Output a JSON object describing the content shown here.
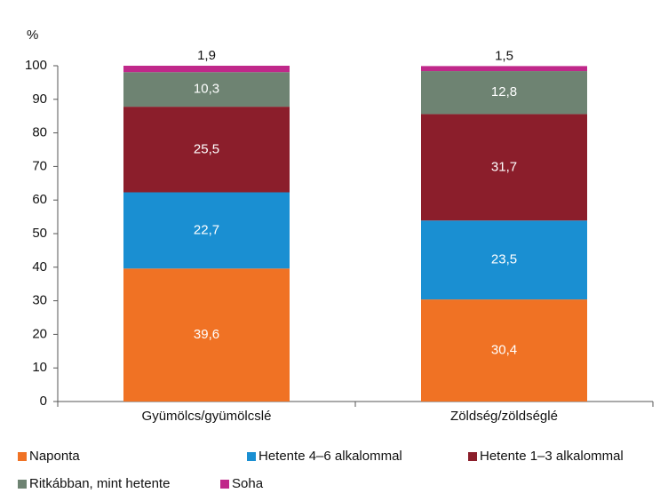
{
  "chart_data": {
    "type": "stacked_bar",
    "ylabel": "%",
    "categories": [
      "Gyümölcs/gyümölcslé",
      "Zöldség/zöldséglé"
    ],
    "series": [
      {
        "name": "Naponta",
        "color": "#f07224",
        "values": [
          39.6,
          30.4
        ],
        "value_labels": [
          "39,6",
          "30,4"
        ]
      },
      {
        "name": "Hetente 4–6 alkalommal",
        "color": "#1a8fd2",
        "values": [
          22.7,
          23.5
        ],
        "value_labels": [
          "22,7",
          "23,5"
        ]
      },
      {
        "name": "Hetente 1–3 alkalommal",
        "color": "#8b1e2b",
        "values": [
          25.5,
          31.7
        ],
        "value_labels": [
          "25,5",
          "31,7"
        ]
      },
      {
        "name": "Ritkábban, mint hetente",
        "color": "#6e8372",
        "values": [
          10.3,
          12.8
        ],
        "value_labels": [
          "10,3",
          "12,8"
        ]
      },
      {
        "name": "Soha",
        "color": "#c0288a",
        "values": [
          1.9,
          1.5
        ],
        "value_labels": [
          "1,9",
          "1,5"
        ]
      }
    ],
    "ylim": [
      0,
      100
    ],
    "yticks": [
      0,
      10,
      20,
      30,
      40,
      50,
      60,
      70,
      80,
      90,
      100
    ],
    "grid": false
  }
}
